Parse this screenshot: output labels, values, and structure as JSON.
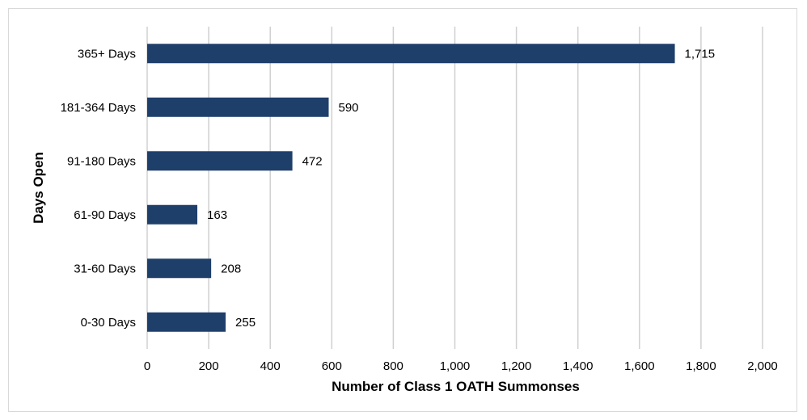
{
  "chart_data": {
    "type": "bar",
    "orientation": "horizontal",
    "categories": [
      "365+ Days",
      "181-364 Days",
      "91-180 Days",
      "61-90 Days",
      "31-60 Days",
      "0-30 Days"
    ],
    "values": [
      1715,
      590,
      472,
      163,
      208,
      255
    ],
    "value_labels": [
      "1,715",
      "590",
      "472",
      "163",
      "208",
      "255"
    ],
    "xlabel": "Number of Class 1 OATH Summonses",
    "ylabel": "Days Open",
    "xlim": [
      0,
      2000
    ],
    "x_ticks": [
      0,
      200,
      400,
      600,
      800,
      1000,
      1200,
      1400,
      1600,
      1800,
      2000
    ],
    "x_tick_labels": [
      "0",
      "200",
      "400",
      "600",
      "800",
      "1,000",
      "1,200",
      "1,400",
      "1,600",
      "1,800",
      "2,000"
    ],
    "grid": "vertical",
    "bar_color": "#1f3f6b",
    "grid_color": "#d0d0d0"
  }
}
